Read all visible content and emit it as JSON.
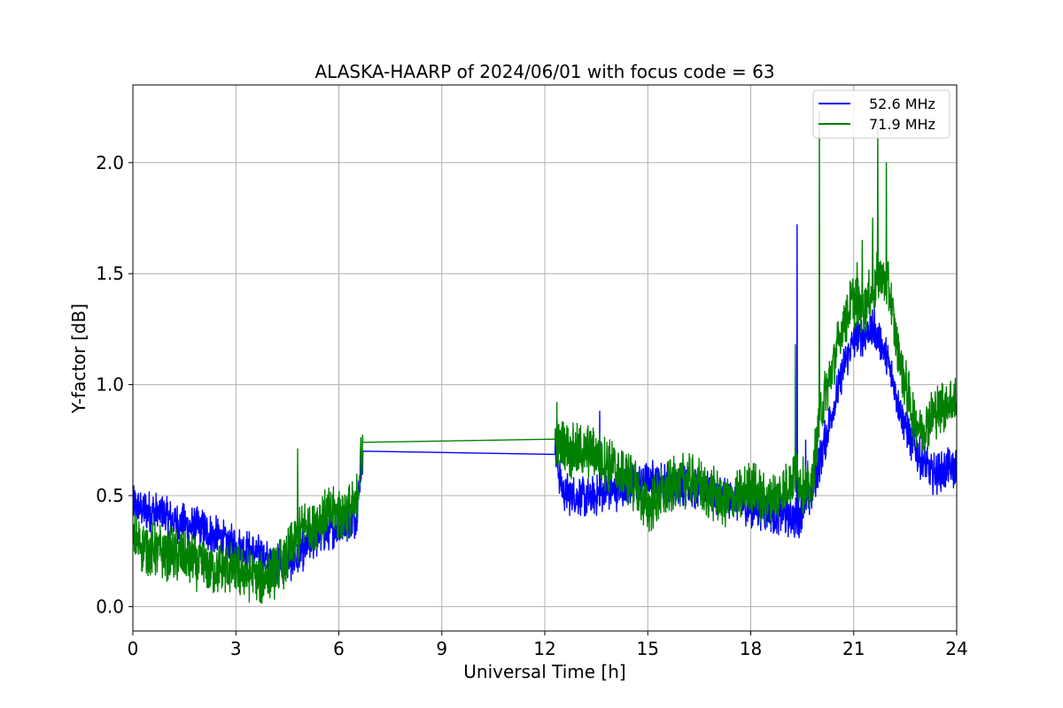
{
  "chart_data": {
    "type": "line",
    "title": "ALASKA-HAARP of 2024/06/01 with focus code = 63",
    "xlabel": "Universal Time [h]",
    "ylabel": "Y-factor [dB]",
    "xlim": [
      0,
      24
    ],
    "ylim": [
      -0.11,
      2.35
    ],
    "xticks": [
      0,
      3,
      6,
      9,
      12,
      15,
      18,
      21,
      24
    ],
    "xtick_labels": [
      "0",
      "3",
      "6",
      "9",
      "12",
      "15",
      "18",
      "21",
      "24"
    ],
    "yticks": [
      0.0,
      0.5,
      1.0,
      1.5,
      2.0
    ],
    "ytick_labels": [
      "0.0",
      "0.5",
      "1.0",
      "1.5",
      "2.0"
    ],
    "grid": true,
    "legend_position": "top-right",
    "series": [
      {
        "name": "52.6 MHz",
        "color": "#0000ff",
        "x": [
          0.0,
          0.25,
          0.5,
          0.75,
          1.0,
          1.25,
          1.5,
          1.75,
          2.0,
          2.25,
          2.5,
          2.75,
          3.0,
          3.25,
          3.5,
          3.75,
          4.0,
          4.25,
          4.5,
          4.75,
          5.0,
          5.25,
          5.5,
          5.75,
          6.0,
          6.25,
          6.5,
          6.7,
          12.3,
          12.5,
          12.75,
          13.0,
          13.25,
          13.5,
          13.75,
          14.0,
          14.25,
          14.5,
          14.75,
          15.0,
          15.25,
          15.5,
          15.75,
          16.0,
          16.25,
          16.5,
          16.75,
          17.0,
          17.25,
          17.5,
          17.75,
          18.0,
          18.25,
          18.5,
          18.75,
          19.0,
          19.25,
          19.4,
          19.5,
          19.75,
          20.0,
          20.25,
          20.5,
          20.75,
          21.0,
          21.25,
          21.5,
          21.75,
          22.0,
          22.25,
          22.5,
          22.75,
          23.0,
          23.25,
          23.5,
          23.75,
          24.0
        ],
        "y": [
          0.45,
          0.44,
          0.43,
          0.42,
          0.4,
          0.38,
          0.37,
          0.36,
          0.35,
          0.33,
          0.31,
          0.29,
          0.27,
          0.26,
          0.24,
          0.23,
          0.2,
          0.19,
          0.2,
          0.22,
          0.26,
          0.3,
          0.33,
          0.35,
          0.36,
          0.38,
          0.4,
          0.7,
          0.71,
          0.53,
          0.5,
          0.5,
          0.49,
          0.5,
          0.52,
          0.52,
          0.53,
          0.55,
          0.56,
          0.57,
          0.57,
          0.56,
          0.55,
          0.55,
          0.54,
          0.53,
          0.52,
          0.51,
          0.5,
          0.48,
          0.46,
          0.45,
          0.44,
          0.43,
          0.42,
          0.41,
          0.4,
          0.4,
          0.45,
          0.5,
          0.65,
          0.8,
          0.95,
          1.1,
          1.2,
          1.22,
          1.25,
          1.2,
          1.1,
          0.95,
          0.82,
          0.72,
          0.65,
          0.6,
          0.6,
          0.62,
          0.62
        ],
        "noise": 0.06,
        "spikes": [
          {
            "x": 13.6,
            "y": 0.88
          },
          {
            "x": 19.35,
            "y": 1.72
          },
          {
            "x": 19.6,
            "y": 0.75
          },
          {
            "x": 20.3,
            "y": 0.9
          },
          {
            "x": 21.6,
            "y": 1.35
          }
        ]
      },
      {
        "name": "71.9 MHz",
        "color": "#008000",
        "x": [
          0.0,
          0.25,
          0.5,
          0.75,
          1.0,
          1.25,
          1.5,
          1.75,
          2.0,
          2.25,
          2.5,
          2.75,
          3.0,
          3.25,
          3.5,
          3.75,
          4.0,
          4.25,
          4.5,
          4.75,
          5.0,
          5.25,
          5.5,
          5.75,
          6.0,
          6.25,
          6.5,
          6.7,
          12.3,
          12.5,
          12.75,
          13.0,
          13.25,
          13.5,
          13.75,
          14.0,
          14.25,
          14.5,
          14.75,
          15.0,
          15.25,
          15.5,
          15.75,
          16.0,
          16.25,
          16.5,
          16.75,
          17.0,
          17.25,
          17.5,
          17.75,
          18.0,
          18.25,
          18.5,
          18.75,
          19.0,
          19.25,
          19.5,
          19.75,
          20.0,
          20.25,
          20.5,
          20.75,
          21.0,
          21.25,
          21.5,
          21.75,
          22.0,
          22.25,
          22.5,
          22.75,
          23.0,
          23.25,
          23.5,
          23.75,
          24.0
        ],
        "y": [
          0.3,
          0.28,
          0.26,
          0.25,
          0.24,
          0.23,
          0.21,
          0.2,
          0.19,
          0.18,
          0.17,
          0.17,
          0.16,
          0.15,
          0.14,
          0.13,
          0.14,
          0.18,
          0.22,
          0.3,
          0.36,
          0.38,
          0.4,
          0.41,
          0.42,
          0.43,
          0.45,
          0.74,
          0.745,
          0.72,
          0.7,
          0.7,
          0.7,
          0.68,
          0.65,
          0.62,
          0.6,
          0.57,
          0.5,
          0.45,
          0.48,
          0.52,
          0.55,
          0.57,
          0.56,
          0.55,
          0.52,
          0.5,
          0.48,
          0.48,
          0.5,
          0.55,
          0.5,
          0.48,
          0.5,
          0.52,
          0.6,
          0.55,
          0.52,
          0.85,
          1.0,
          1.15,
          1.3,
          1.38,
          1.35,
          1.4,
          1.5,
          1.45,
          1.2,
          1.0,
          0.85,
          0.8,
          0.85,
          0.9,
          0.92,
          0.92
        ],
        "noise": 0.08,
        "spikes": [
          {
            "x": 4.8,
            "y": 0.71
          },
          {
            "x": 12.35,
            "y": 0.92
          },
          {
            "x": 19.3,
            "y": 1.18
          },
          {
            "x": 20.0,
            "y": 2.23
          },
          {
            "x": 21.1,
            "y": 1.55
          },
          {
            "x": 21.55,
            "y": 1.75
          },
          {
            "x": 21.7,
            "y": 2.18
          },
          {
            "x": 21.95,
            "y": 2.0
          },
          {
            "x": 21.25,
            "y": 1.65
          }
        ]
      }
    ]
  }
}
